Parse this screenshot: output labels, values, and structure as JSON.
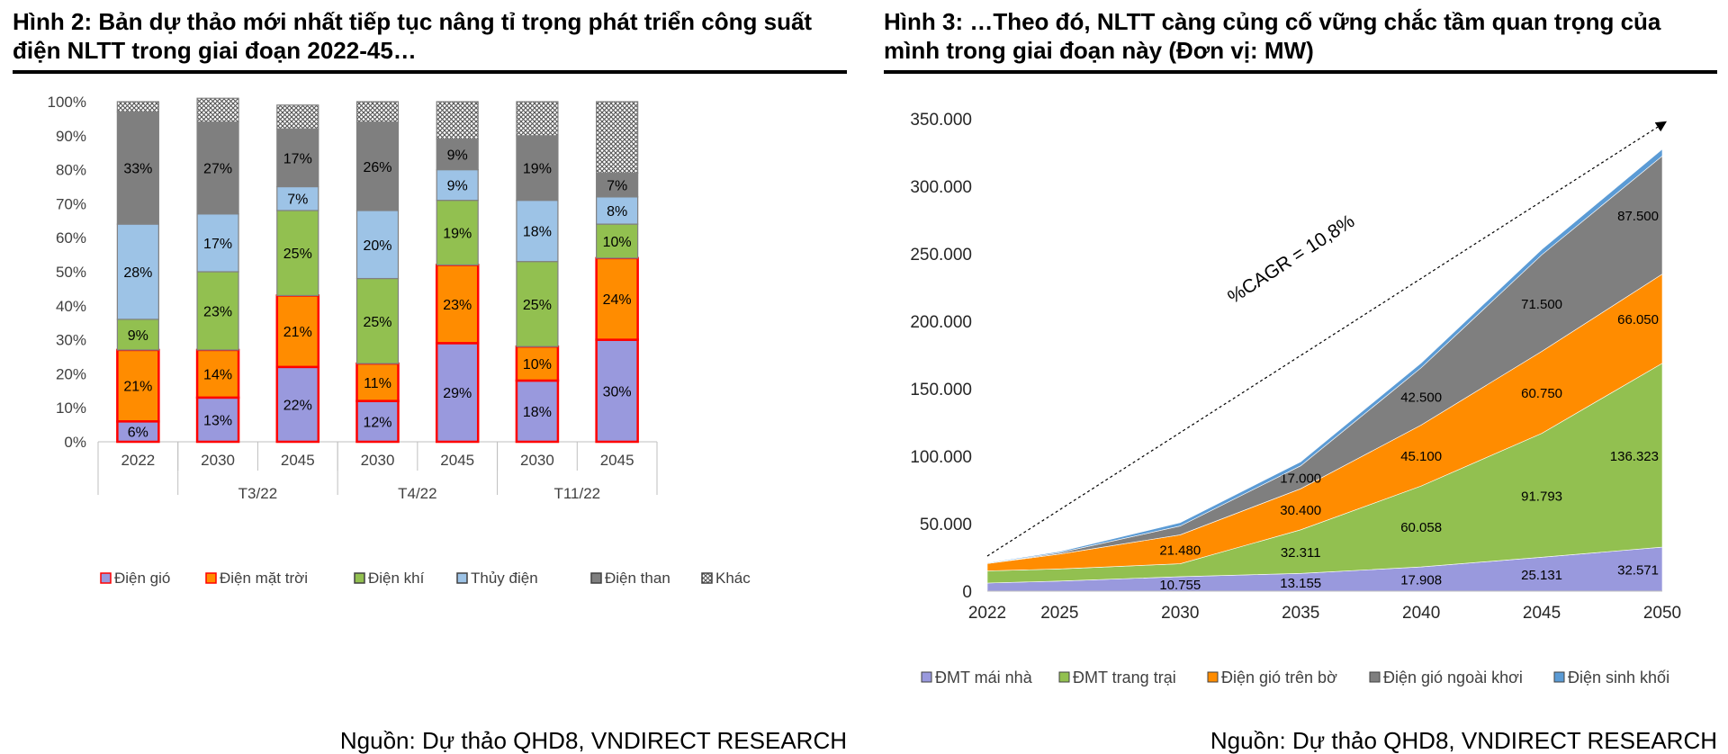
{
  "panels": [
    {
      "title": "Hình 2: Bản dự thảo mới nhất tiếp tục nâng tỉ trọng phát triển công suất điện NLTT trong giai đoạn 2022-45…",
      "source": "Nguồn: Dự thảo QHD8, VNDIRECT RESEARCH"
    },
    {
      "title": "Hình 3: …Theo đó, NLTT càng củng cố vững chắc tầm quan trọng của mình trong giai đoạn này (Đơn vị: MW)",
      "source": "Nguồn: Dự thảo QHD8, VNDIRECT RESEARCH"
    }
  ],
  "chart_data": [
    {
      "type": "bar",
      "stacked": true,
      "percent": true,
      "categories": [
        "2022",
        "2030",
        "2045",
        "2030",
        "2045",
        "2030",
        "2045"
      ],
      "groups": [
        {
          "label": "",
          "span": 1
        },
        {
          "label": "T3/22",
          "span": 2
        },
        {
          "label": "T4/22",
          "span": 2
        },
        {
          "label": "T11/22",
          "span": 2
        }
      ],
      "ylim": [
        0,
        100
      ],
      "yticks": [
        "0%",
        "10%",
        "20%",
        "30%",
        "40%",
        "50%",
        "60%",
        "70%",
        "80%",
        "90%",
        "100%"
      ],
      "legend_position": "bottom",
      "series": [
        {
          "name": "Điện gió",
          "color": "#9999dd",
          "border": "#ff0000",
          "values": [
            6,
            13,
            22,
            12,
            29,
            18,
            30
          ],
          "labels": [
            "6%",
            "13%",
            "22%",
            "12%",
            "29%",
            "18%",
            "30%"
          ]
        },
        {
          "name": "Điện mặt trời",
          "color": "#ff8c00",
          "border": "#ff0000",
          "values": [
            21,
            14,
            21,
            11,
            23,
            10,
            24
          ],
          "labels": [
            "21%",
            "14%",
            "21%",
            "11%",
            "23%",
            "10%",
            "24%"
          ]
        },
        {
          "name": "Điện khí",
          "color": "#92c050",
          "border": "#808080",
          "values": [
            9,
            23,
            25,
            25,
            19,
            25,
            10
          ],
          "labels": [
            "9%",
            "23%",
            "25%",
            "25%",
            "19%",
            "25%",
            "10%"
          ]
        },
        {
          "name": "Thủy điện",
          "color": "#9dc3e6",
          "border": "#808080",
          "values": [
            28,
            17,
            7,
            20,
            9,
            18,
            8
          ],
          "labels": [
            "28%",
            "17%",
            "7%",
            "20%",
            "9%",
            "18%",
            "8%"
          ]
        },
        {
          "name": "Điện than",
          "color": "#7f7f7f",
          "border": "#808080",
          "values": [
            33,
            27,
            17,
            26,
            9,
            19,
            7
          ],
          "labels": [
            "33%",
            "27%",
            "17%",
            "26%",
            "9%",
            "19%",
            "7%"
          ]
        },
        {
          "name": "Khác",
          "color": "hatch",
          "border": "#808080",
          "values": [
            3,
            7,
            7,
            6,
            11,
            10,
            21
          ],
          "labels": [
            "",
            "",
            "",
            "",
            "",
            "",
            ""
          ]
        }
      ]
    },
    {
      "type": "area",
      "stacked": true,
      "x": [
        2022,
        2025,
        2030,
        2035,
        2040,
        2045,
        2050
      ],
      "xticks": [
        "2022",
        "2025",
        "2030",
        "2035",
        "2040",
        "2045",
        "2050"
      ],
      "ylim": [
        0,
        350000
      ],
      "yticks": [
        "0",
        "50.000",
        "100.000",
        "150.000",
        "200.000",
        "250.000",
        "300.000",
        "350.000"
      ],
      "legend_position": "bottom",
      "annotation": "%CAGR = 10,8%",
      "series": [
        {
          "name": "ĐMT mái nhà",
          "color": "#9999dd",
          "values": [
            6000,
            7500,
            10755,
            13155,
            17908,
            25131,
            32571
          ],
          "labels": [
            "",
            "",
            "10.755",
            "13.155",
            "17.908",
            "25.131",
            "32.571"
          ]
        },
        {
          "name": "ĐMT trang trại",
          "color": "#92c050",
          "values": [
            9000,
            9000,
            9500,
            32311,
            60058,
            91793,
            136323
          ],
          "labels": [
            "",
            "",
            "",
            "32.311",
            "60.058",
            "91.793",
            "136.323"
          ]
        },
        {
          "name": "Điện gió trên bờ",
          "color": "#ff8c00",
          "values": [
            5500,
            11000,
            21480,
            30400,
            45100,
            60750,
            66050
          ],
          "labels": [
            "",
            "",
            "21.480",
            "30.400",
            "45.100",
            "60.750",
            "66.050"
          ]
        },
        {
          "name": "Điện gió ngoài khơi",
          "color": "#7f7f7f",
          "values": [
            0,
            1000,
            6500,
            17000,
            42500,
            71500,
            87500
          ],
          "labels": [
            "",
            "",
            "",
            "17.000",
            "42.500",
            "71.500",
            "87.500"
          ]
        },
        {
          "name": "Điện sinh khối",
          "color": "#5b9bd5",
          "values": [
            400,
            800,
            2500,
            3000,
            3500,
            4000,
            5000
          ],
          "labels": [
            "",
            "",
            "",
            "",
            "",
            "",
            ""
          ]
        }
      ]
    }
  ]
}
